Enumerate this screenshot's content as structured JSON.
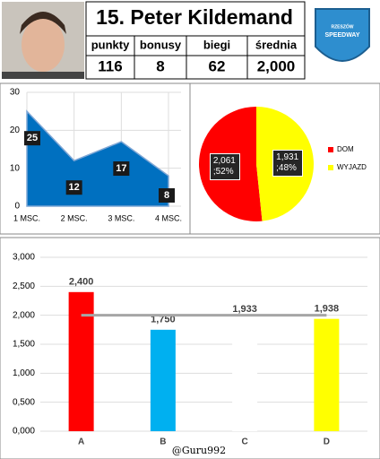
{
  "header": {
    "title": "15. Peter Kildemand",
    "stats": {
      "labels": [
        "punkty",
        "bonusy",
        "biegi",
        "średnia"
      ],
      "values": [
        "116",
        "8",
        "62",
        "2,000"
      ]
    },
    "logo_text": [
      "RZESZÓW",
      "SPEEDWAY"
    ]
  },
  "chart_data": [
    {
      "type": "area",
      "categories": [
        "1 MSC.",
        "2 MSC.",
        "3 MSC.",
        "4 MSC."
      ],
      "values": [
        25,
        12,
        17,
        8
      ],
      "color": "#0070c0",
      "ylim": [
        0,
        30
      ],
      "yticks": [
        0,
        10,
        20,
        30
      ],
      "grid": true
    },
    {
      "type": "pie",
      "categories": [
        "DOM",
        "WYJAZD"
      ],
      "values": [
        2.061,
        1.931
      ],
      "value_labels": [
        "2,061 ;52%",
        "1,931 ;48%"
      ],
      "colors": [
        "#ff0000",
        "#ffff00"
      ],
      "legend": "right"
    },
    {
      "type": "bar",
      "categories": [
        "A",
        "B",
        "C",
        "D"
      ],
      "values": [
        2.4,
        1.75,
        1.933,
        1.938
      ],
      "value_labels": [
        "2,400",
        "1,750",
        "1,933",
        "1,938"
      ],
      "colors": [
        "#ff0000",
        "#00b0f0",
        "#ffffff",
        "#ffff00"
      ],
      "average_line": 2,
      "ylim": [
        0,
        3
      ],
      "yticks": [
        {
          "value": 0,
          "label": "0,000"
        },
        {
          "value": 0.5,
          "label": "0,500"
        },
        {
          "value": 1,
          "label": "1,000"
        },
        {
          "value": 1.5,
          "label": "1,500"
        },
        {
          "value": 2,
          "label": "2,000"
        },
        {
          "value": 2.5,
          "label": "2,500"
        },
        {
          "value": 3,
          "label": "3,000"
        }
      ],
      "grid": true
    }
  ],
  "footer": "@Guru992"
}
